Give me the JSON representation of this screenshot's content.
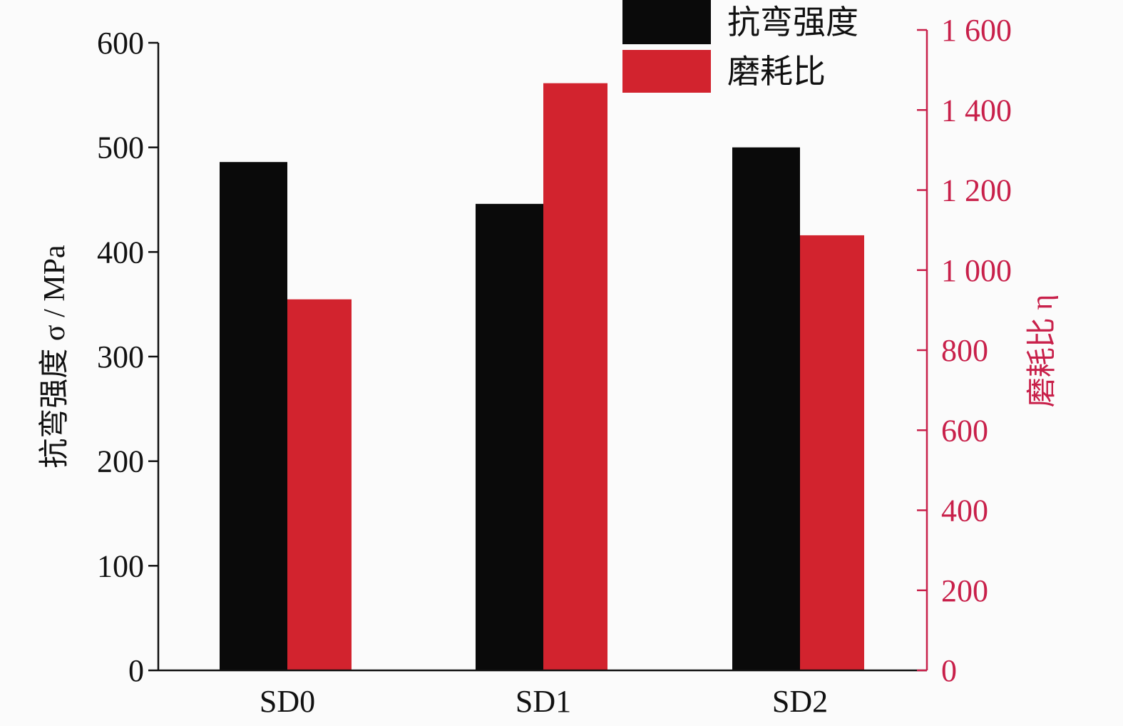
{
  "chart_data": {
    "type": "bar",
    "categories": [
      "SD0",
      "SD1",
      "SD2"
    ],
    "series": [
      {
        "name": "抗弯强度",
        "axis": "left",
        "color": "#0a0a0a",
        "values": [
          486,
          446,
          500
        ]
      },
      {
        "name": "磨耗比",
        "axis": "right",
        "color": "#d2232e",
        "values": [
          927,
          1467,
          1087
        ]
      }
    ],
    "y_left": {
      "label": "抗弯强度 σ / MPa",
      "lim": [
        0,
        600
      ],
      "ticks": [
        0,
        100,
        200,
        300,
        400,
        500,
        600
      ],
      "tick_labels": [
        "0",
        "100",
        "200",
        "300",
        "400",
        "500",
        "600"
      ]
    },
    "y_right": {
      "label": "磨耗比 η",
      "lim": [
        0,
        1600
      ],
      "ticks": [
        0,
        200,
        400,
        600,
        800,
        1000,
        1200,
        1400,
        1600
      ],
      "tick_labels": [
        "0",
        "200",
        "400",
        "600",
        "800",
        "1 000",
        "1 200",
        "1 400",
        "1 600"
      ],
      "color": "#c8204a"
    },
    "legend": "top-center",
    "grid": false
  }
}
